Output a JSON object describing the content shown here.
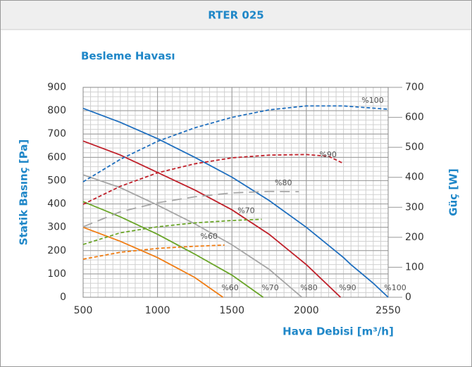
{
  "chart_data": {
    "type": "line",
    "header": "RTER 025",
    "title": "Besleme Havası",
    "xlabel": "Hava Debisi [m³/h]",
    "ylabel": "Statik Basınç [Pa]",
    "y2label": "Güç [W]",
    "xlim": [
      500,
      2550
    ],
    "xticks": [
      500,
      1000,
      1500,
      2000,
      2550
    ],
    "ylim": [
      0,
      900
    ],
    "yticks": [
      0,
      100,
      200,
      300,
      400,
      500,
      600,
      700,
      800,
      900
    ],
    "y2lim": [
      0,
      700
    ],
    "y2ticks": [
      0,
      100,
      200,
      300,
      400,
      500,
      600,
      700
    ],
    "grid": true,
    "minor_grid": {
      "x": 50,
      "y": 20
    },
    "series": [
      {
        "name": "%100",
        "color": "#1f6fbf",
        "linestyle": "solid",
        "x": [
          500,
          750,
          1000,
          1250,
          1500,
          1750,
          2000,
          2250,
          2300,
          2450,
          2550
        ],
        "values": [
          810,
          750,
          680,
          600,
          515,
          415,
          300,
          170,
          140,
          60,
          0
        ]
      },
      {
        "name": "%90",
        "color": "#c0202a",
        "linestyle": "solid",
        "x": [
          500,
          750,
          1000,
          1250,
          1500,
          1750,
          2000,
          2230
        ],
        "values": [
          670,
          610,
          535,
          460,
          375,
          270,
          140,
          0
        ]
      },
      {
        "name": "%80",
        "color": "#a6a6a6",
        "linestyle": "solid",
        "x": [
          500,
          750,
          1000,
          1250,
          1500,
          1750,
          1970
        ],
        "values": [
          525,
          470,
          395,
          315,
          225,
          120,
          0
        ]
      },
      {
        "name": "%70",
        "color": "#6aa528",
        "linestyle": "solid",
        "x": [
          500,
          750,
          1000,
          1250,
          1500,
          1710
        ],
        "values": [
          410,
          345,
          270,
          185,
          95,
          0
        ]
      },
      {
        "name": "%60",
        "color": "#f07d14",
        "linestyle": "solid",
        "x": [
          500,
          750,
          1000,
          1250,
          1440
        ],
        "values": [
          300,
          240,
          170,
          85,
          0
        ]
      },
      {
        "name": "%100",
        "color": "#1f6fbf",
        "linestyle": "dashed",
        "axis": "y2",
        "x": [
          500,
          750,
          1000,
          1250,
          1500,
          1750,
          2000,
          2250,
          2550
        ],
        "values": [
          385,
          460,
          520,
          565,
          600,
          625,
          638,
          638,
          627
        ]
      },
      {
        "name": "%90",
        "color": "#c0202a",
        "linestyle": "dashed",
        "axis": "y2",
        "x": [
          500,
          750,
          1000,
          1250,
          1500,
          1750,
          2000,
          2150,
          2250
        ],
        "values": [
          310,
          370,
          415,
          445,
          465,
          474,
          476,
          470,
          446
        ]
      },
      {
        "name": "%80",
        "color": "#a6a6a6",
        "linestyle": "longdash",
        "axis": "y2",
        "x": [
          500,
          750,
          1000,
          1250,
          1500,
          1750,
          1950
        ],
        "values": [
          235,
          285,
          315,
          335,
          348,
          353,
          352
        ]
      },
      {
        "name": "%70",
        "color": "#6aa528",
        "linestyle": "dashed",
        "axis": "y2",
        "x": [
          500,
          750,
          1000,
          1250,
          1500,
          1700
        ],
        "values": [
          176,
          215,
          235,
          248,
          256,
          260
        ]
      },
      {
        "name": "%60",
        "color": "#f07d14",
        "linestyle": "dashed",
        "axis": "y2",
        "x": [
          500,
          750,
          1000,
          1250,
          1450
        ],
        "values": [
          127,
          150,
          163,
          170,
          174
        ]
      }
    ]
  }
}
